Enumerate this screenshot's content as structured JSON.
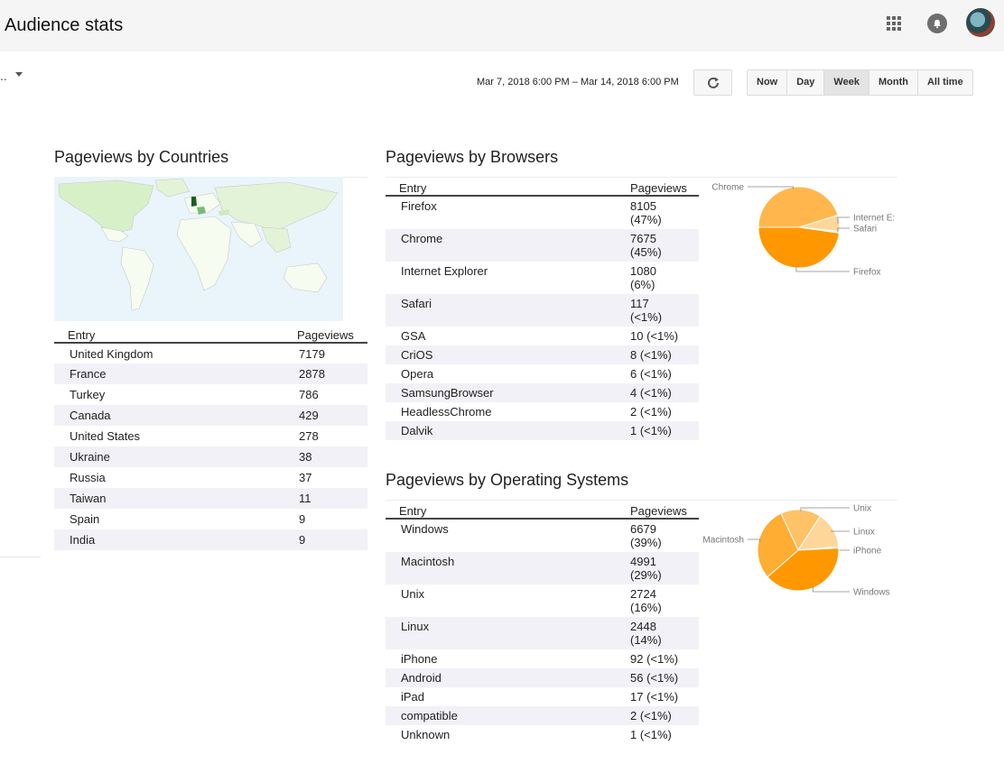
{
  "header": {
    "title": "Audience stats"
  },
  "toolbar": {
    "dropdown_label": "..",
    "date_range": "Mar 7, 2018 6:00 PM – Mar 14, 2018 6:00 PM",
    "ranges": [
      "Now",
      "Day",
      "Week",
      "Month",
      "All time"
    ],
    "active_range": "Week"
  },
  "countries": {
    "title": "Pageviews by Countries",
    "headers": [
      "Entry",
      "Pageviews"
    ],
    "rows": [
      [
        "United Kingdom",
        "7179"
      ],
      [
        "France",
        "2878"
      ],
      [
        "Turkey",
        "786"
      ],
      [
        "Canada",
        "429"
      ],
      [
        "United States",
        "278"
      ],
      [
        "Ukraine",
        "38"
      ],
      [
        "Russia",
        "37"
      ],
      [
        "Taiwan",
        "11"
      ],
      [
        "Spain",
        "9"
      ],
      [
        "India",
        "9"
      ]
    ]
  },
  "browsers": {
    "title": "Pageviews by Browsers",
    "headers": [
      "Entry",
      "Pageviews"
    ],
    "rows": [
      [
        "Firefox",
        "8105",
        "(47%)"
      ],
      [
        "Chrome",
        "7675",
        "(45%)"
      ],
      [
        "Internet Explorer",
        "1080",
        "(6%)"
      ],
      [
        "Safari",
        "117",
        "(<1%)"
      ],
      [
        "GSA",
        "10 (<1%)",
        ""
      ],
      [
        "CriOS",
        "8 (<1%)",
        ""
      ],
      [
        "Opera",
        "6 (<1%)",
        ""
      ],
      [
        "SamsungBrowser",
        "4 (<1%)",
        ""
      ],
      [
        "HeadlessChrome",
        "2 (<1%)",
        ""
      ],
      [
        "Dalvik",
        "1 (<1%)",
        ""
      ]
    ]
  },
  "os": {
    "title": "Pageviews by Operating Systems",
    "headers": [
      "Entry",
      "Pageviews"
    ],
    "rows": [
      [
        "Windows",
        "6679",
        "(39%)"
      ],
      [
        "Macintosh",
        "4991",
        "(29%)"
      ],
      [
        "Unix",
        "2724",
        "(16%)"
      ],
      [
        "Linux",
        "2448",
        "(14%)"
      ],
      [
        "iPhone",
        "92 (<1%)",
        ""
      ],
      [
        "Android",
        "56 (<1%)",
        ""
      ],
      [
        "iPad",
        "17 (<1%)",
        ""
      ],
      [
        "compatible",
        "2 (<1%)",
        ""
      ],
      [
        "Unknown",
        "1 (<1%)",
        ""
      ]
    ]
  },
  "chart_data": [
    {
      "type": "pie",
      "labels": [
        "Chrome",
        "Internet E:",
        "Safari",
        "Firefox"
      ],
      "values": [
        7675,
        1080,
        117,
        8105
      ],
      "colors": [
        "#ffb74d",
        "#ffd699",
        "#ffe7c2",
        "#ff9800"
      ]
    },
    {
      "type": "pie",
      "labels": [
        "Unix",
        "Linux",
        "iPhone",
        "Windows",
        "Macintosh"
      ],
      "values": [
        2724,
        2448,
        92,
        6679,
        4991
      ],
      "colors": [
        "#ffc266",
        "#ffd699",
        "#ffe7c2",
        "#ff9800",
        "#ffad33"
      ]
    }
  ]
}
